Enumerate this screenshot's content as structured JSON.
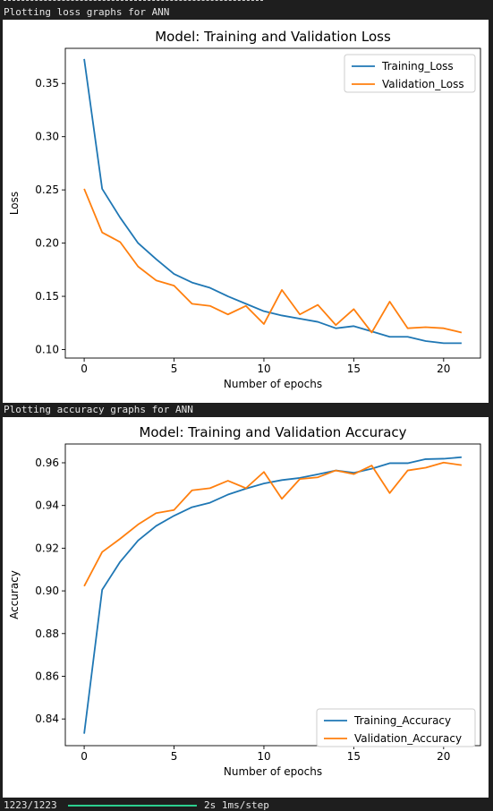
{
  "console": {
    "caption_loss": "Plotting loss graphs for ANN",
    "caption_accuracy": "Plotting accuracy graphs for ANN",
    "progress_count": "1223/1223",
    "progress_fraction": 1.0,
    "progress_info": "2s 1ms/step"
  },
  "colors": {
    "training": "#1f77b4",
    "validation": "#ff7f0e",
    "progress": "#2bcf8f"
  },
  "chart_data": [
    {
      "type": "line",
      "title": "Model: Training and Validation Loss",
      "xlabel": "Number of epochs",
      "ylabel": "Loss",
      "x": [
        0,
        1,
        2,
        3,
        4,
        5,
        6,
        7,
        8,
        9,
        10,
        11,
        12,
        13,
        14,
        15,
        16,
        17,
        18,
        19,
        20,
        21
      ],
      "xlim": [
        -1.05,
        22.05
      ],
      "ylim": [
        0.092,
        0.383
      ],
      "xticks": [
        0,
        5,
        10,
        15,
        20
      ],
      "yticks": [
        0.1,
        0.15,
        0.2,
        0.25,
        0.3,
        0.35
      ],
      "yticklabels": [
        "0.10",
        "0.15",
        "0.20",
        "0.25",
        "0.30",
        "0.35"
      ],
      "grid": false,
      "legend_position": "top-right",
      "series": [
        {
          "name": "Training_Loss",
          "values": [
            0.373,
            0.251,
            0.224,
            0.2,
            0.185,
            0.171,
            0.163,
            0.158,
            0.15,
            0.143,
            0.136,
            0.132,
            0.129,
            0.126,
            0.12,
            0.122,
            0.117,
            0.112,
            0.112,
            0.108,
            0.106,
            0.106
          ]
        },
        {
          "name": "Validation_Loss",
          "values": [
            0.251,
            0.21,
            0.201,
            0.178,
            0.165,
            0.16,
            0.143,
            0.141,
            0.133,
            0.141,
            0.124,
            0.156,
            0.133,
            0.142,
            0.123,
            0.138,
            0.116,
            0.145,
            0.12,
            0.121,
            0.12,
            0.116
          ]
        }
      ]
    },
    {
      "type": "line",
      "title": "Model: Training and Validation Accuracy",
      "xlabel": "Number of epochs",
      "ylabel": "Accuracy",
      "x": [
        0,
        1,
        2,
        3,
        4,
        5,
        6,
        7,
        8,
        9,
        10,
        11,
        12,
        13,
        14,
        15,
        16,
        17,
        18,
        19,
        20,
        21
      ],
      "xlim": [
        -1.05,
        22.05
      ],
      "ylim": [
        0.8275,
        0.9688
      ],
      "xticks": [
        0,
        5,
        10,
        15,
        20
      ],
      "yticks": [
        0.84,
        0.86,
        0.88,
        0.9,
        0.92,
        0.94,
        0.96
      ],
      "yticklabels": [
        "0.84",
        "0.86",
        "0.88",
        "0.90",
        "0.92",
        "0.94",
        "0.96"
      ],
      "grid": false,
      "legend_position": "bottom-right",
      "series": [
        {
          "name": "Training_Accuracy",
          "values": [
            0.8331,
            0.9005,
            0.9136,
            0.9236,
            0.9304,
            0.9352,
            0.9392,
            0.9413,
            0.9451,
            0.9479,
            0.9503,
            0.9519,
            0.9529,
            0.9546,
            0.9564,
            0.9553,
            0.9572,
            0.9598,
            0.9598,
            0.9617,
            0.9619,
            0.9626
          ]
        },
        {
          "name": "Validation_Accuracy",
          "values": [
            0.9022,
            0.9182,
            0.9244,
            0.9311,
            0.9364,
            0.9379,
            0.9471,
            0.9481,
            0.9516,
            0.9481,
            0.9557,
            0.9431,
            0.9524,
            0.9532,
            0.9564,
            0.9547,
            0.9587,
            0.9458,
            0.9564,
            0.9577,
            0.9601,
            0.9589
          ]
        }
      ]
    }
  ]
}
